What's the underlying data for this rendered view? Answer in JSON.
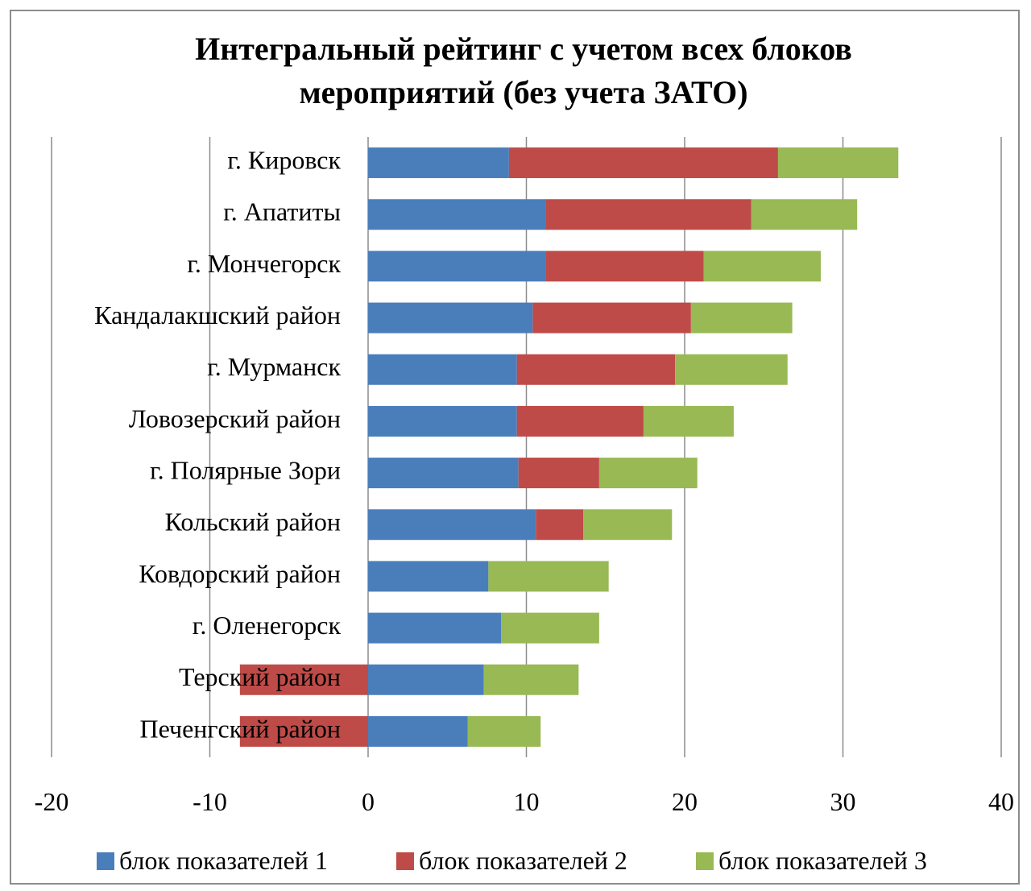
{
  "chart_data": {
    "type": "bar",
    "orientation": "horizontal",
    "stacked": true,
    "title_lines": [
      "Интегральный рейтинг с учетом всех блоков",
      "мероприятий (без учета ЗАТО)"
    ],
    "categories": [
      "г. Кировск",
      "г. Апатиты",
      "г. Мончегорск",
      "Кандалакшский район",
      "г. Мурманск",
      "Ловозерский район",
      "г. Полярные Зори",
      "Кольский район",
      "Ковдорский район",
      "г. Оленегорск",
      "Терский район",
      "Печенгский район"
    ],
    "series": [
      {
        "name": "блок показателей 1",
        "color": "#4a7ebb",
        "values": [
          8.9,
          11.2,
          11.2,
          10.4,
          9.4,
          9.4,
          9.5,
          10.6,
          7.6,
          8.4,
          7.3,
          6.3
        ]
      },
      {
        "name": "блок показателей 2",
        "color": "#be4b48",
        "values": [
          17.0,
          13.0,
          10.0,
          10.0,
          10.0,
          8.0,
          5.1,
          3.0,
          0.0,
          0.0,
          -8.1,
          -8.1
        ]
      },
      {
        "name": "блок показателей 3",
        "color": "#98b954",
        "values": [
          7.6,
          6.7,
          7.4,
          6.4,
          7.1,
          5.7,
          6.2,
          5.6,
          7.6,
          6.2,
          6.0,
          4.6
        ]
      }
    ],
    "xlim": [
      -20,
      40
    ],
    "xticks": [
      "-20",
      "-10",
      "0",
      "10",
      "20",
      "30",
      "40"
    ],
    "grid": true,
    "legend_position": "bottom"
  }
}
